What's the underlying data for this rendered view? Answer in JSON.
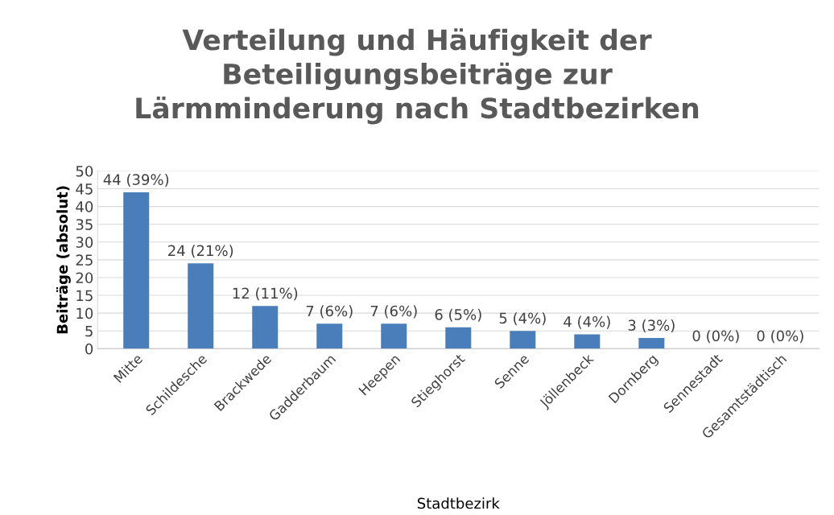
{
  "chart_data": {
    "type": "bar",
    "title": "Verteilung und Häufigkeit der\nBeteiligungsbeiträge zur\nLärmminderung nach Stadtbezirken",
    "xlabel": "Stadtbezirk",
    "ylabel": "Beiträge (absolut)",
    "categories": [
      "Mitte",
      "Schildesche",
      "Brackwede",
      "Gadderbaum",
      "Heepen",
      "Stieghorst",
      "Senne",
      "Jöllenbeck",
      "Dornberg",
      "Sennestadt",
      "Gesamtstädtisch"
    ],
    "values": [
      44,
      24,
      12,
      7,
      7,
      6,
      5,
      4,
      3,
      0,
      0
    ],
    "value_labels": [
      "44 (39%)",
      "24 (21%)",
      "12 (11%)",
      "7 (6%)",
      "7 (6%)",
      "6 (5%)",
      "5 (4%)",
      "4 (4%)",
      "3 (3%)",
      "0 (0%)",
      "0 (0%)"
    ],
    "color": "#4a7ebb",
    "ylim": [
      0,
      50
    ],
    "yticks": [
      0,
      5,
      10,
      15,
      20,
      25,
      30,
      35,
      40,
      45,
      50
    ],
    "grid": "y",
    "legend": false
  }
}
